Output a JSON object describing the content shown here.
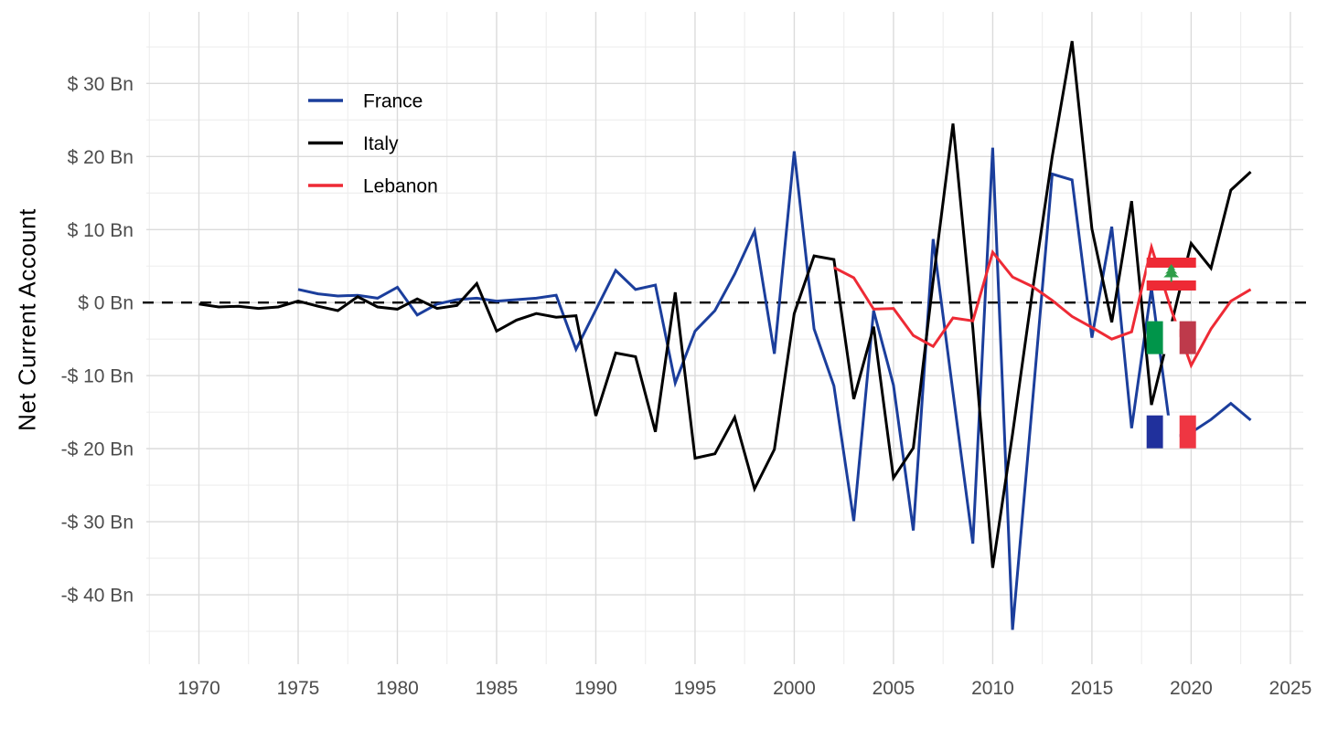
{
  "figure": {
    "background": "#FFFFFF"
  },
  "chart_data": {
    "type": "line",
    "title": "",
    "xlabel": "",
    "ylabel": "Net Current Account",
    "xlim": [
      1967.35,
      2025.65
    ],
    "ylim": [
      -49.5,
      39.8
    ],
    "grid": {
      "show": true,
      "major_color": "#DBDBDB",
      "minor_color": "#EDEDED"
    },
    "axis_text_color": "#4D4D4D",
    "x_ticks": [
      {
        "value": 1970,
        "label": "1970"
      },
      {
        "value": 1975,
        "label": "1975"
      },
      {
        "value": 1980,
        "label": "1980"
      },
      {
        "value": 1985,
        "label": "1985"
      },
      {
        "value": 1990,
        "label": "1990"
      },
      {
        "value": 1995,
        "label": "1995"
      },
      {
        "value": 2000,
        "label": "2000"
      },
      {
        "value": 2005,
        "label": "2005"
      },
      {
        "value": 2010,
        "label": "2010"
      },
      {
        "value": 2015,
        "label": "2015"
      },
      {
        "value": 2020,
        "label": "2020"
      },
      {
        "value": 2025,
        "label": "2025"
      }
    ],
    "x_minor_ticks": [
      1967.5,
      1972.5,
      1977.5,
      1982.5,
      1987.5,
      1992.5,
      1997.5,
      2002.5,
      2007.5,
      2012.5,
      2017.5,
      2022.5
    ],
    "y_ticks": [
      {
        "value": 30,
        "label": "$ 30 Bn"
      },
      {
        "value": 20,
        "label": "$ 20 Bn"
      },
      {
        "value": 10,
        "label": "$ 10 Bn"
      },
      {
        "value": 0,
        "label": "$ 0 Bn"
      },
      {
        "value": -10,
        "label": "-$ 10 Bn"
      },
      {
        "value": -20,
        "label": "-$ 20 Bn"
      },
      {
        "value": -30,
        "label": "-$ 30 Bn"
      },
      {
        "value": -40,
        "label": "-$ 40 Bn"
      }
    ],
    "y_minor_ticks": [
      35,
      25,
      15,
      5,
      -5,
      -15,
      -25,
      -35,
      -45
    ],
    "zero_line": {
      "value": 0,
      "style": "dashed",
      "color": "#000000"
    },
    "legend": {
      "position": "inside-top-left",
      "entries": [
        "France",
        "Italy",
        "Lebanon"
      ]
    },
    "series": [
      {
        "name": "France",
        "color": "#1B3E9C",
        "points": [
          [
            1975,
            1.8
          ],
          [
            1976,
            1.2
          ],
          [
            1977,
            0.9
          ],
          [
            1978,
            1.0
          ],
          [
            1979,
            0.6
          ],
          [
            1980,
            2.1
          ],
          [
            1981,
            -1.7
          ],
          [
            1982,
            -0.2
          ],
          [
            1983,
            0.4
          ],
          [
            1984,
            0.6
          ],
          [
            1985,
            0.2
          ],
          [
            1986,
            0.4
          ],
          [
            1987,
            0.6
          ],
          [
            1988,
            1.0
          ],
          [
            1989,
            -6.4
          ],
          [
            1990,
            -1.0
          ],
          [
            1991,
            4.4
          ],
          [
            1992,
            1.8
          ],
          [
            1993,
            2.4
          ],
          [
            1994,
            -11.0
          ],
          [
            1995,
            -3.9
          ],
          [
            1996,
            -1.1
          ],
          [
            1997,
            3.9
          ],
          [
            1998,
            9.8
          ],
          [
            1999,
            -7.0
          ],
          [
            2000,
            20.7
          ],
          [
            2001,
            -3.6
          ],
          [
            2002,
            -11.4
          ],
          [
            2003,
            -29.9
          ],
          [
            2004,
            -1.1
          ],
          [
            2005,
            -11.3
          ],
          [
            2006,
            -31.2
          ],
          [
            2007,
            8.7
          ],
          [
            2008,
            -12.3
          ],
          [
            2009,
            -33.0
          ],
          [
            2010,
            21.2
          ],
          [
            2011,
            -44.8
          ],
          [
            2012,
            -13.8
          ],
          [
            2013,
            17.6
          ],
          [
            2014,
            16.8
          ],
          [
            2015,
            -4.8
          ],
          [
            2016,
            10.4
          ],
          [
            2017,
            -17.2
          ],
          [
            2018,
            2.0
          ],
          [
            2019,
            -18.5
          ],
          [
            2020,
            -17.8
          ],
          [
            2021,
            -16.0
          ],
          [
            2022,
            -13.8
          ],
          [
            2023,
            -16.1
          ]
        ]
      },
      {
        "name": "Italy",
        "color": "#000000",
        "points": [
          [
            1970,
            -0.2
          ],
          [
            1971,
            -0.6
          ],
          [
            1972,
            -0.5
          ],
          [
            1973,
            -0.8
          ],
          [
            1974,
            -0.6
          ],
          [
            1975,
            0.2
          ],
          [
            1976,
            -0.5
          ],
          [
            1977,
            -1.1
          ],
          [
            1978,
            0.8
          ],
          [
            1979,
            -0.6
          ],
          [
            1980,
            -0.9
          ],
          [
            1981,
            0.5
          ],
          [
            1982,
            -0.8
          ],
          [
            1983,
            -0.4
          ],
          [
            1984,
            2.6
          ],
          [
            1985,
            -3.9
          ],
          [
            1986,
            -2.4
          ],
          [
            1987,
            -1.5
          ],
          [
            1988,
            -2.0
          ],
          [
            1989,
            -1.8
          ],
          [
            1990,
            -15.5
          ],
          [
            1991,
            -6.9
          ],
          [
            1992,
            -7.4
          ],
          [
            1993,
            -17.7
          ],
          [
            1994,
            1.4
          ],
          [
            1995,
            -21.3
          ],
          [
            1996,
            -20.7
          ],
          [
            1997,
            -15.7
          ],
          [
            1998,
            -25.5
          ],
          [
            1999,
            -20.1
          ],
          [
            2000,
            -1.5
          ],
          [
            2001,
            6.4
          ],
          [
            2002,
            5.9
          ],
          [
            2003,
            -13.2
          ],
          [
            2004,
            -3.3
          ],
          [
            2005,
            -24.0
          ],
          [
            2006,
            -19.9
          ],
          [
            2007,
            3.0
          ],
          [
            2008,
            24.5
          ],
          [
            2009,
            -3.5
          ],
          [
            2010,
            -36.3
          ],
          [
            2011,
            -18.0
          ],
          [
            2012,
            1.5
          ],
          [
            2013,
            20.0
          ],
          [
            2014,
            35.8
          ],
          [
            2015,
            10.1
          ],
          [
            2016,
            -2.7
          ],
          [
            2017,
            13.9
          ],
          [
            2018,
            -14.0
          ],
          [
            2019,
            -3.0
          ],
          [
            2020,
            8.1
          ],
          [
            2021,
            4.7
          ],
          [
            2022,
            15.4
          ],
          [
            2023,
            17.9
          ]
        ]
      },
      {
        "name": "Lebanon",
        "color": "#EE2A35",
        "points": [
          [
            2002,
            4.8
          ],
          [
            2003,
            3.4
          ],
          [
            2004,
            -0.9
          ],
          [
            2005,
            -0.8
          ],
          [
            2006,
            -4.5
          ],
          [
            2007,
            -6.0
          ],
          [
            2008,
            -2.1
          ],
          [
            2009,
            -2.5
          ],
          [
            2010,
            6.9
          ],
          [
            2011,
            3.5
          ],
          [
            2012,
            2.2
          ],
          [
            2013,
            0.3
          ],
          [
            2014,
            -1.9
          ],
          [
            2015,
            -3.4
          ],
          [
            2016,
            -5.0
          ],
          [
            2017,
            -4.0
          ],
          [
            2018,
            7.6
          ],
          [
            2019,
            -1.0
          ],
          [
            2020,
            -8.6
          ],
          [
            2021,
            -3.6
          ],
          [
            2022,
            0.2
          ],
          [
            2023,
            1.8
          ]
        ]
      }
    ],
    "annotations": [
      {
        "type": "flag",
        "country": "Lebanon",
        "year": 2019,
        "value": 3.9,
        "design": "lebanon",
        "colors": {
          "bar": "#EE2A35",
          "field": "#FFFFFF",
          "cedar": "#2E9E49"
        }
      },
      {
        "type": "flag",
        "country": "Italy",
        "year": 2019,
        "value": -4.8,
        "design": "vertical-tricolor",
        "colors": {
          "left": "#00954A",
          "middle": "#FFFFFF",
          "right": "#BE3A4B"
        }
      },
      {
        "type": "flag",
        "country": "France",
        "year": 2019,
        "value": -17.7,
        "design": "vertical-tricolor",
        "colors": {
          "left": "#20309C",
          "middle": "#FFFFFF",
          "right": "#EF3642"
        }
      }
    ]
  }
}
